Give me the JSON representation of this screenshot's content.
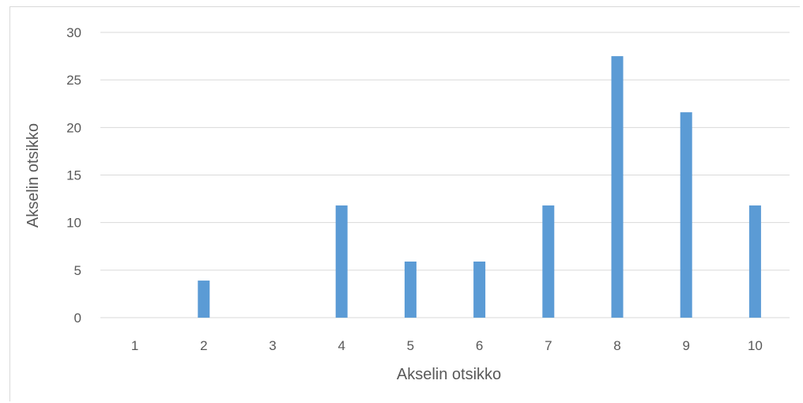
{
  "chart_data": {
    "type": "bar",
    "title": "",
    "xlabel": "Akselin otsikko",
    "ylabel": "Akselin otsikko",
    "categories": [
      "1",
      "2",
      "3",
      "4",
      "5",
      "6",
      "7",
      "8",
      "9",
      "10"
    ],
    "values": [
      0,
      3.9,
      0,
      11.8,
      5.9,
      5.9,
      11.8,
      27.5,
      21.6,
      11.8
    ],
    "ylim": [
      0,
      30
    ],
    "yticks": [
      "0",
      "5",
      "10",
      "15",
      "20",
      "25",
      "30"
    ],
    "grid": true,
    "legend": "none",
    "colors": {
      "bar": "#5b9bd5",
      "grid": "#d9d9d9",
      "text": "#595959"
    }
  }
}
